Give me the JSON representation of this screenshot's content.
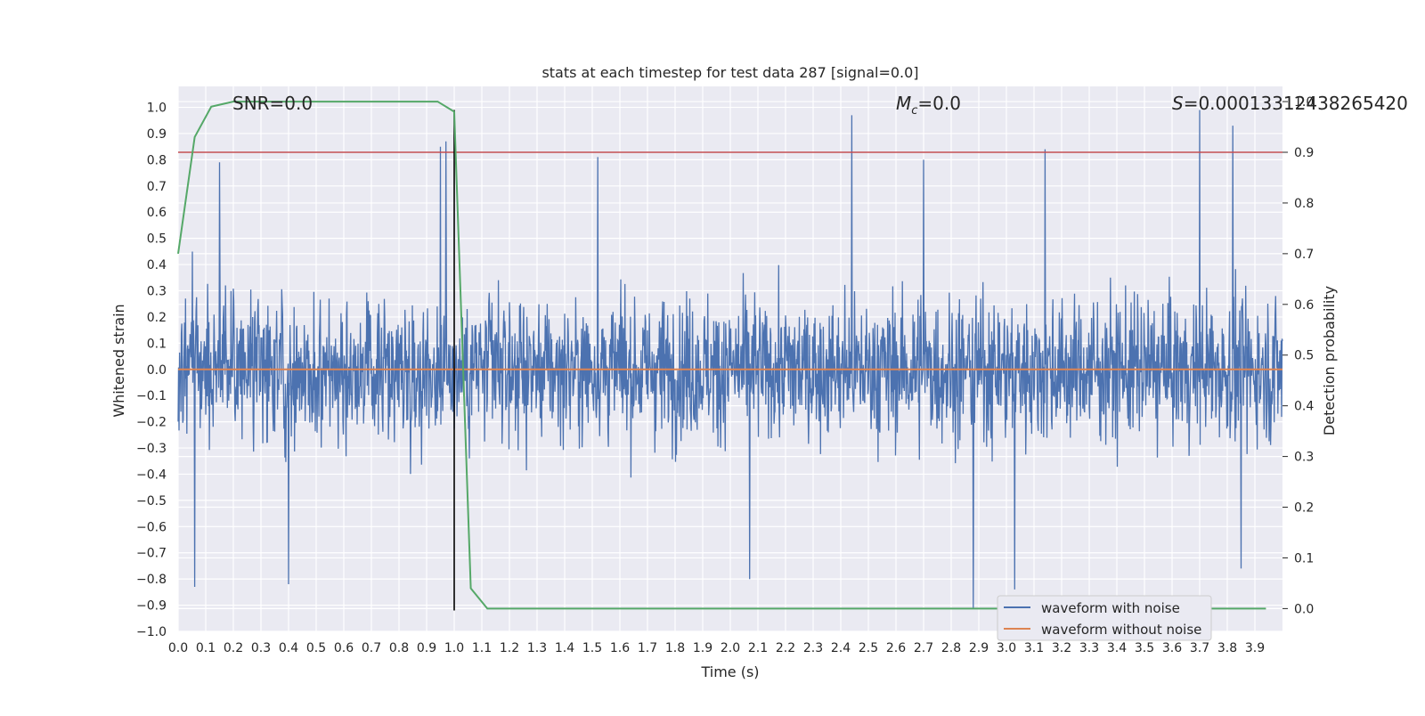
{
  "chart_data": {
    "type": "line",
    "title": "stats at each timestep for test data 287 [signal=0.0]",
    "xlabel": "Time (s)",
    "ylabel": "Whitened strain",
    "y2label": "Detection probability",
    "xlim": [
      0.0,
      4.0
    ],
    "ylim": [
      -1.0,
      1.08
    ],
    "y2lim": [
      -0.045,
      1.03
    ],
    "x_ticks": [
      "0.0",
      "0.1",
      "0.2",
      "0.3",
      "0.4",
      "0.5",
      "0.6",
      "0.7",
      "0.8",
      "0.9",
      "1.0",
      "1.1",
      "1.2",
      "1.3",
      "1.4",
      "1.5",
      "1.6",
      "1.7",
      "1.8",
      "1.9",
      "2.0",
      "2.1",
      "2.2",
      "2.3",
      "2.4",
      "2.5",
      "2.6",
      "2.7",
      "2.8",
      "2.9",
      "3.0",
      "3.1",
      "3.2",
      "3.3",
      "3.4",
      "3.5",
      "3.6",
      "3.7",
      "3.8",
      "3.9"
    ],
    "y_ticks": [
      "1.0",
      "0.9",
      "0.8",
      "0.7",
      "0.6",
      "0.5",
      "0.4",
      "0.3",
      "0.2",
      "0.1",
      "0.0",
      "−0.1",
      "−0.2",
      "−0.3",
      "−0.4",
      "−0.5",
      "−0.6",
      "−0.7",
      "−0.8",
      "−0.9",
      "−1.0"
    ],
    "y2_ticks": [
      "1.0",
      "0.9",
      "0.8",
      "0.7",
      "0.6",
      "0.5",
      "0.4",
      "0.3",
      "0.2",
      "0.1",
      "0.0"
    ],
    "grid": true,
    "legend_position": "lower-right",
    "annotations": {
      "snr": "SNR=0.0",
      "mc_symbol": "M",
      "mc_sub": "c",
      "mc_value": "=0.0",
      "s_symbol": "S",
      "s_value": "=0.00013312438265420"
    },
    "series": [
      {
        "name": "waveform with noise",
        "color": "#4c72b0",
        "axis": "left",
        "description_values": "dense noise, typically within ±0.6, peaks ~0.99 near t=3.7 and ~-0.91 near t=2.88",
        "peaks": [
          {
            "x": 0.95,
            "y": 0.85
          },
          {
            "x": 0.97,
            "y": 0.87
          },
          {
            "x": 0.15,
            "y": 0.79
          },
          {
            "x": 1.52,
            "y": 0.81
          },
          {
            "x": 2.44,
            "y": 0.97
          },
          {
            "x": 2.7,
            "y": 0.8
          },
          {
            "x": 3.14,
            "y": 0.84
          },
          {
            "x": 3.7,
            "y": 0.99
          },
          {
            "x": 3.82,
            "y": 0.93
          },
          {
            "x": 0.06,
            "y": -0.83
          },
          {
            "x": 0.4,
            "y": -0.82
          },
          {
            "x": 2.88,
            "y": -0.91
          },
          {
            "x": 3.03,
            "y": -0.84
          },
          {
            "x": 2.07,
            "y": -0.8
          },
          {
            "x": 3.85,
            "y": -0.76
          }
        ]
      },
      {
        "name": "waveform without noise",
        "color": "#dd8452",
        "axis": "left",
        "x": [
          0.0,
          4.0
        ],
        "y": [
          0.0,
          0.0
        ]
      },
      {
        "name": "",
        "color": "#55a868",
        "axis": "right",
        "x": [
          0.0,
          0.06,
          0.12,
          0.2,
          0.3,
          0.5,
          0.7,
          0.94,
          1.0,
          1.06,
          1.12,
          1.2,
          1.5,
          2.0,
          2.5,
          3.0,
          3.5,
          3.94
        ],
        "y": [
          0.7,
          0.93,
          0.99,
          1.0,
          1.0,
          1.0,
          1.0,
          1.0,
          0.98,
          0.04,
          0.0,
          0.0,
          0.0,
          0.0,
          0.0,
          0.0,
          0.0,
          0.0
        ]
      }
    ],
    "threshold": {
      "color": "#c44e52",
      "axis": "right",
      "value": 0.9
    },
    "marker_line": {
      "color": "#000000",
      "x": 1.0,
      "y_from": -0.92,
      "y_to": 0.99
    }
  }
}
